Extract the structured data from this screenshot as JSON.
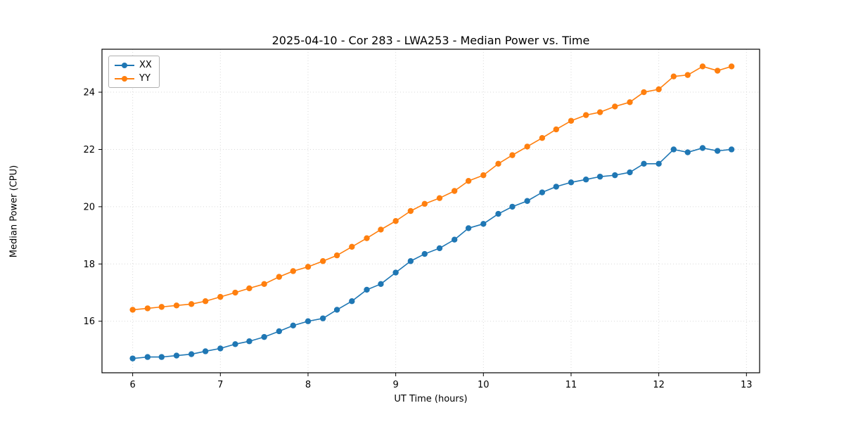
{
  "chart_data": {
    "type": "line",
    "title": "2025-04-10 - Cor 283 - LWA253 - Median Power vs. Time",
    "xlabel": "UT Time (hours)",
    "ylabel": "Median Power (CPU)",
    "xlim": [
      5.65,
      13.15
    ],
    "ylim": [
      14.2,
      25.5
    ],
    "xticks": [
      6,
      7,
      8,
      9,
      10,
      11,
      12,
      13
    ],
    "yticks": [
      16,
      18,
      20,
      22,
      24
    ],
    "grid": true,
    "grid_color": "#d9d9d9",
    "legend_position": "upper left",
    "x": [
      6.0,
      6.17,
      6.33,
      6.5,
      6.67,
      6.83,
      7.0,
      7.17,
      7.33,
      7.5,
      7.67,
      7.83,
      8.0,
      8.17,
      8.33,
      8.5,
      8.67,
      8.83,
      9.0,
      9.17,
      9.33,
      9.5,
      9.67,
      9.83,
      10.0,
      10.17,
      10.33,
      10.5,
      10.67,
      10.83,
      11.0,
      11.17,
      11.33,
      11.5,
      11.67,
      11.83,
      12.0,
      12.17,
      12.33,
      12.5,
      12.67,
      12.83
    ],
    "series": [
      {
        "name": "XX",
        "color": "#1f77b4",
        "values": [
          14.7,
          14.75,
          14.75,
          14.8,
          14.85,
          14.95,
          15.05,
          15.2,
          15.3,
          15.45,
          15.65,
          15.85,
          16.0,
          16.1,
          16.4,
          16.7,
          17.1,
          17.3,
          17.7,
          18.1,
          18.35,
          18.55,
          18.85,
          19.25,
          19.4,
          19.75,
          20.0,
          20.2,
          20.5,
          20.7,
          20.85,
          20.95,
          21.05,
          21.1,
          21.2,
          21.5,
          21.5,
          22.0,
          21.9,
          22.05,
          21.95,
          22.0
        ]
      },
      {
        "name": "YY",
        "color": "#ff7f0e",
        "values": [
          16.4,
          16.45,
          16.5,
          16.55,
          16.6,
          16.7,
          16.85,
          17.0,
          17.15,
          17.3,
          17.55,
          17.75,
          17.9,
          18.1,
          18.3,
          18.6,
          18.9,
          19.2,
          19.5,
          19.85,
          20.1,
          20.3,
          20.55,
          20.9,
          21.1,
          21.5,
          21.8,
          22.1,
          22.4,
          22.7,
          23.0,
          23.2,
          23.3,
          23.5,
          23.65,
          24.0,
          24.1,
          24.55,
          24.6,
          24.9,
          24.75,
          24.9
        ]
      }
    ]
  }
}
